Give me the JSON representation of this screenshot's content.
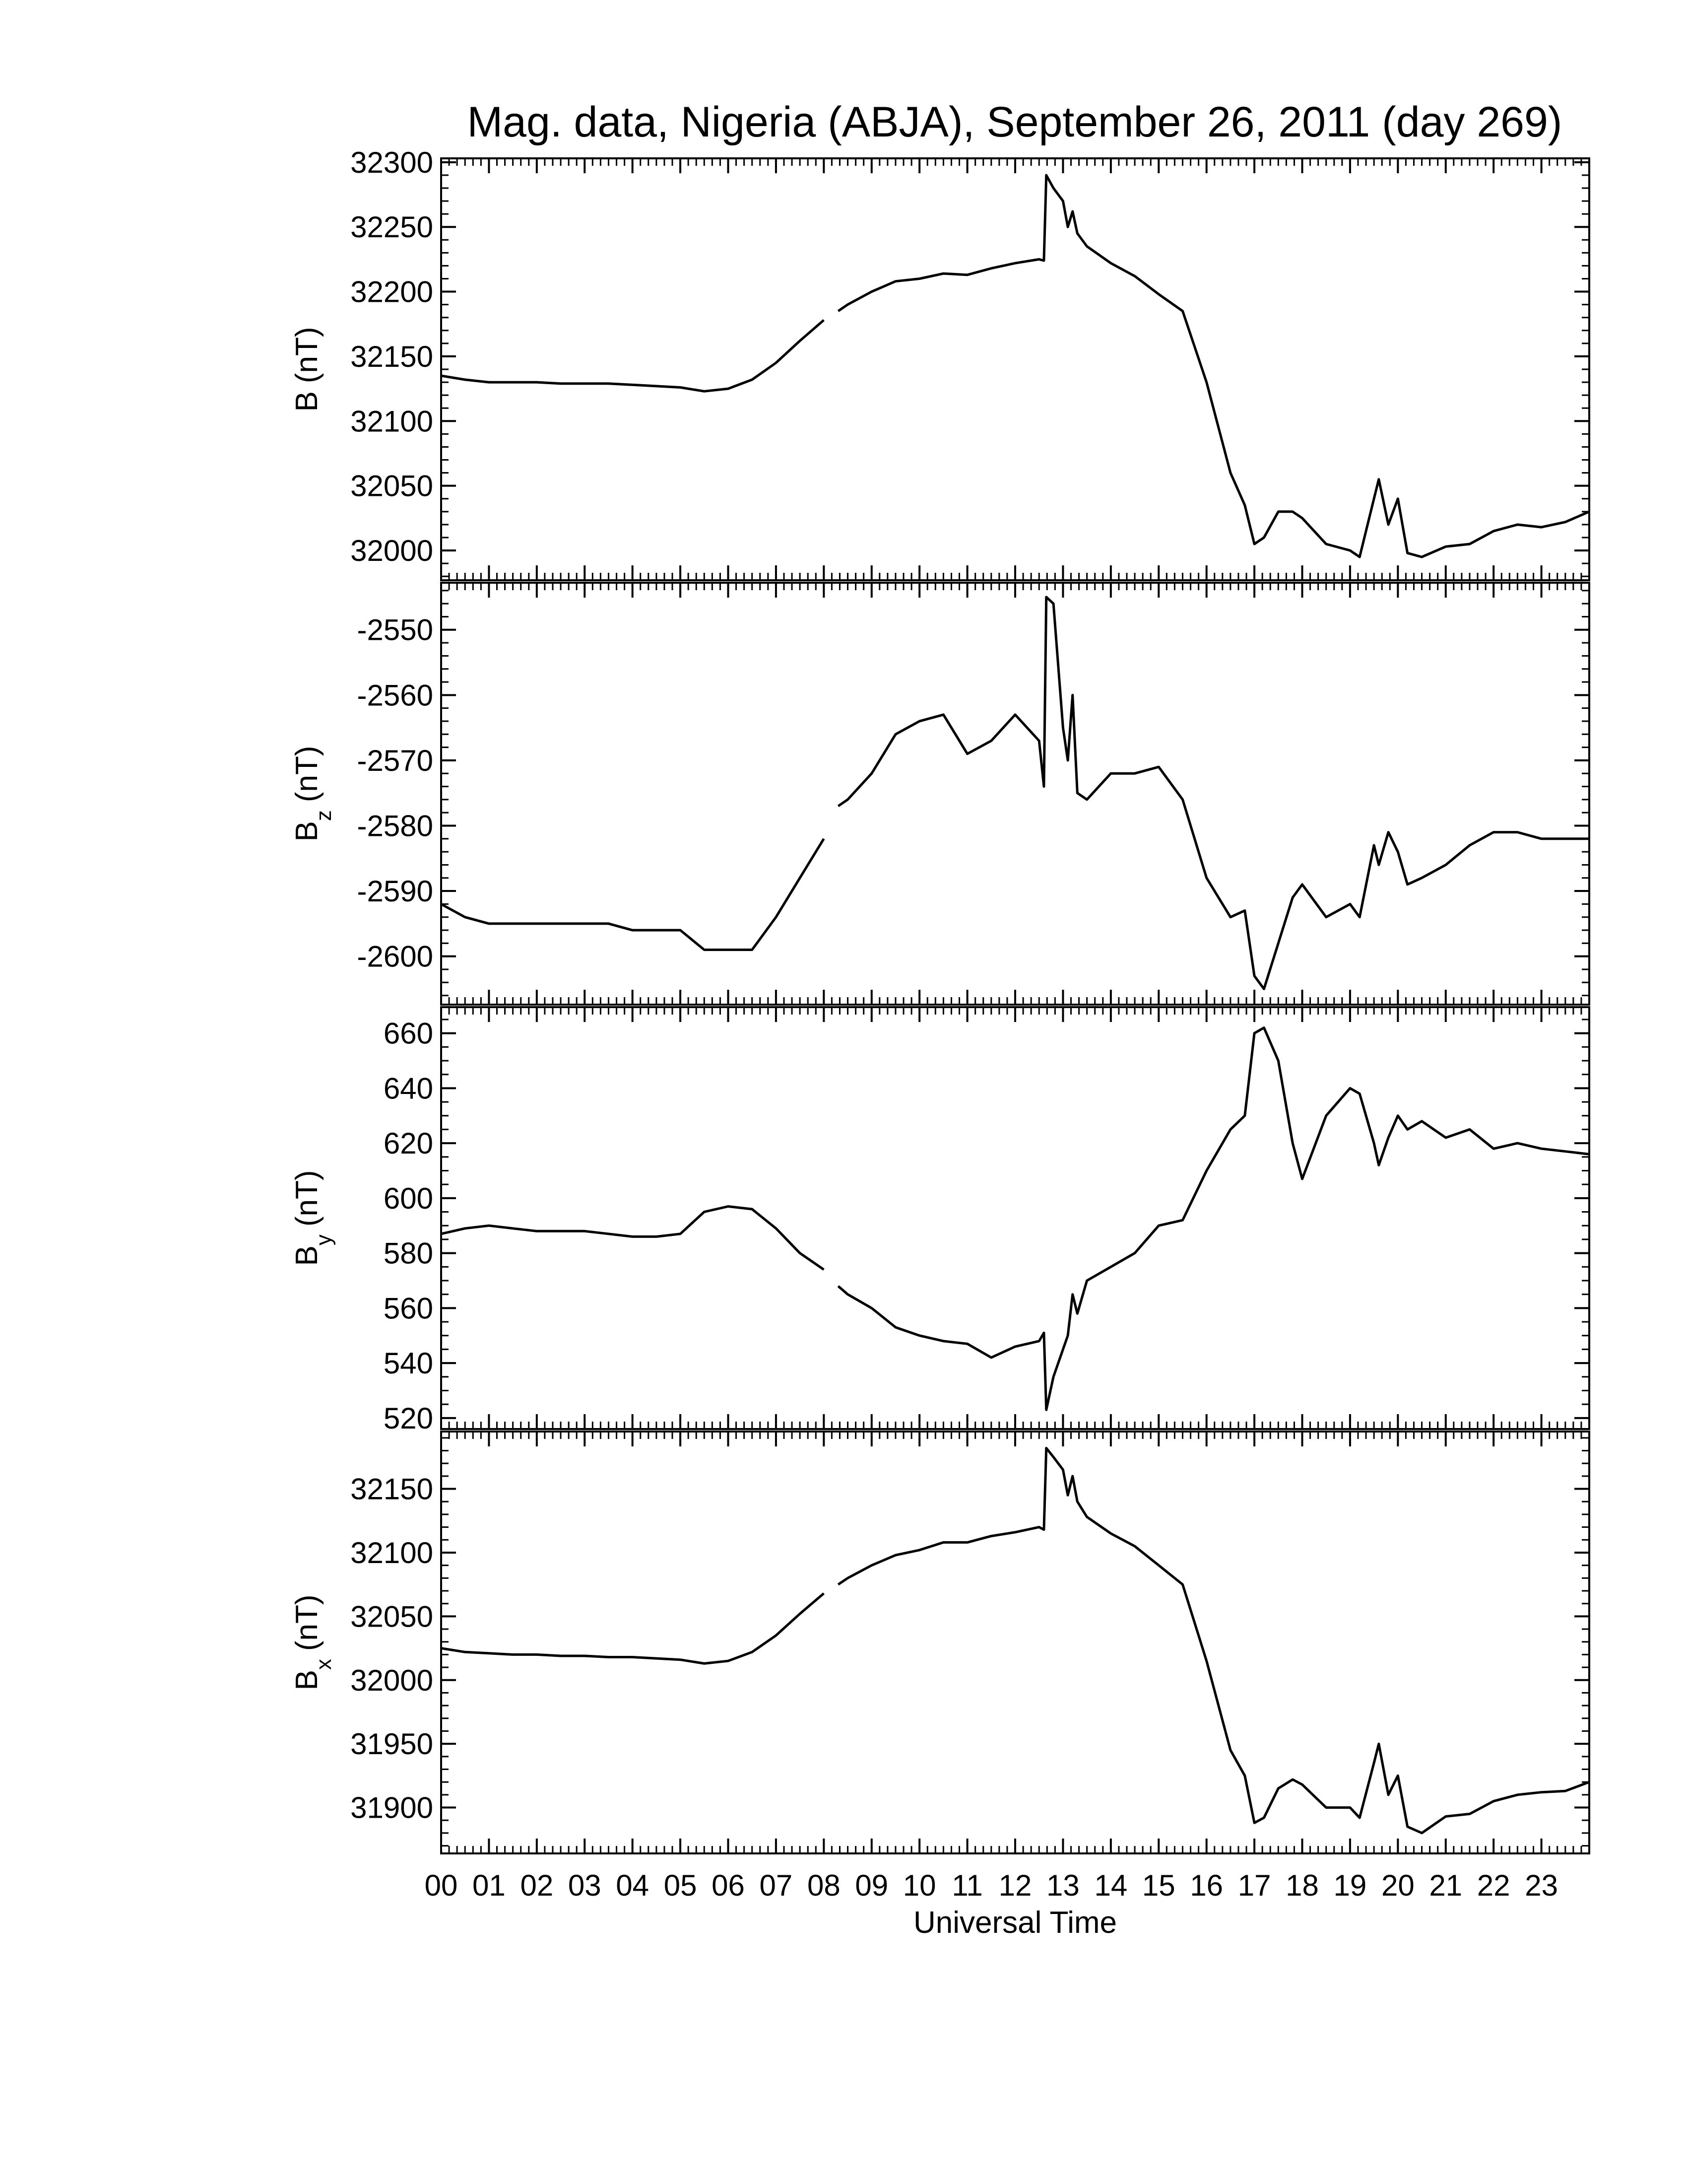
{
  "chart_data": [
    {
      "type": "line",
      "title": "Mag. data, Nigeria (ABJA), September 26, 2011 (day 269)",
      "ylabel": {
        "text": "B",
        "unit": "(nT)"
      },
      "x": [
        0,
        0.5,
        1,
        1.5,
        2,
        2.5,
        3,
        3.5,
        4,
        4.5,
        5,
        5.5,
        6,
        6.5,
        7,
        7.5,
        8,
        8.15,
        8.3,
        8.5,
        9,
        9.5,
        10,
        10.5,
        11,
        11.5,
        12,
        12.5,
        12.6,
        12.65,
        12.8,
        13,
        13.1,
        13.2,
        13.3,
        13.5,
        14,
        14.5,
        15,
        15.5,
        16,
        16.5,
        16.8,
        17,
        17.2,
        17.5,
        17.8,
        18,
        18.5,
        19,
        19.2,
        19.5,
        19.6,
        19.8,
        20,
        20.2,
        20.5,
        21,
        21.5,
        22,
        22.5,
        23,
        23.5,
        24
      ],
      "series": [
        {
          "color": "#000000",
          "values": [
            32135,
            32132,
            32130,
            32130,
            32130,
            32129,
            32129,
            32129,
            32128,
            32127,
            32126,
            32123,
            32125,
            32132,
            32145,
            32162,
            32178,
            null,
            32185,
            32190,
            32200,
            32208,
            32210,
            32214,
            32213,
            32218,
            32222,
            32225,
            32224,
            32290,
            32280,
            32270,
            32250,
            32262,
            32245,
            32235,
            32222,
            32212,
            32198,
            32185,
            32130,
            32060,
            32035,
            32005,
            32010,
            32030,
            32030,
            32025,
            32005,
            32000,
            31995,
            32040,
            32055,
            32020,
            32040,
            31998,
            31995,
            32003,
            32005,
            32015,
            32020,
            32018,
            32022,
            32030
          ]
        }
      ],
      "xlim": [
        0,
        24
      ],
      "xticks": [
        0,
        1,
        2,
        3,
        4,
        5,
        6,
        7,
        8,
        9,
        10,
        11,
        12,
        13,
        14,
        15,
        16,
        17,
        18,
        19,
        20,
        21,
        22,
        23
      ],
      "ylim": [
        31977,
        32303
      ],
      "yticks": [
        32000,
        32050,
        32100,
        32150,
        32200,
        32250,
        32300
      ],
      "x_minor_per_major": 6,
      "y_minor_per_major": 5
    },
    {
      "type": "line",
      "ylabel": {
        "text": "B",
        "subscript": "z",
        "unit": "(nT)"
      },
      "x": [
        0,
        0.5,
        1,
        1.5,
        2,
        2.5,
        3,
        3.5,
        4,
        4.5,
        5,
        5.5,
        6,
        6.5,
        7,
        7.5,
        8,
        8.15,
        8.3,
        8.5,
        9,
        9.5,
        10,
        10.5,
        11,
        11.5,
        12,
        12.5,
        12.6,
        12.65,
        12.8,
        13,
        13.1,
        13.2,
        13.3,
        13.5,
        14,
        14.5,
        15,
        15.5,
        16,
        16.5,
        16.8,
        17,
        17.2,
        17.5,
        17.8,
        18,
        18.5,
        19,
        19.2,
        19.5,
        19.6,
        19.8,
        20,
        20.2,
        20.5,
        21,
        21.5,
        22,
        22.5,
        23,
        23.5,
        24
      ],
      "series": [
        {
          "color": "#000000",
          "values": [
            -2592,
            -2594,
            -2595,
            -2595,
            -2595,
            -2595,
            -2595,
            -2595,
            -2596,
            -2596,
            -2596,
            -2599,
            -2599,
            -2599,
            -2594,
            -2588,
            -2582,
            null,
            -2577,
            -2576,
            -2572,
            -2566,
            -2564,
            -2563,
            -2569,
            -2567,
            -2563,
            -2567,
            -2574,
            -2545,
            -2546,
            -2565,
            -2570,
            -2560,
            -2575,
            -2576,
            -2572,
            -2572,
            -2571,
            -2576,
            -2588,
            -2594,
            -2593,
            -2603,
            -2605,
            -2598,
            -2591,
            -2589,
            -2594,
            -2592,
            -2594,
            -2583,
            -2586,
            -2581,
            -2584,
            -2589,
            -2588,
            -2586,
            -2583,
            -2581,
            -2581,
            -2582,
            -2582,
            -2582
          ]
        }
      ],
      "xlim": [
        0,
        24
      ],
      "xticks": [
        0,
        1,
        2,
        3,
        4,
        5,
        6,
        7,
        8,
        9,
        10,
        11,
        12,
        13,
        14,
        15,
        16,
        17,
        18,
        19,
        20,
        21,
        22,
        23
      ],
      "ylim": [
        -2607.4,
        -2542.8
      ],
      "yticks": [
        -2600,
        -2590,
        -2580,
        -2570,
        -2560,
        -2550
      ],
      "x_minor_per_major": 6,
      "y_minor_per_major": 5
    },
    {
      "type": "line",
      "ylabel": {
        "text": "B",
        "subscript": "y",
        "unit": "(nT)"
      },
      "x": [
        0,
        0.5,
        1,
        1.5,
        2,
        2.5,
        3,
        3.5,
        4,
        4.5,
        5,
        5.5,
        6,
        6.5,
        7,
        7.5,
        8,
        8.15,
        8.3,
        8.5,
        9,
        9.5,
        10,
        10.5,
        11,
        11.5,
        12,
        12.5,
        12.6,
        12.65,
        12.8,
        13,
        13.1,
        13.2,
        13.3,
        13.5,
        14,
        14.5,
        15,
        15.5,
        16,
        16.5,
        16.8,
        17,
        17.2,
        17.5,
        17.8,
        18,
        18.5,
        19,
        19.2,
        19.5,
        19.6,
        19.8,
        20,
        20.2,
        20.5,
        21,
        21.5,
        22,
        22.5,
        23,
        23.5,
        24
      ],
      "series": [
        {
          "color": "#000000",
          "values": [
            587,
            589,
            590,
            589,
            588,
            588,
            588,
            587,
            586,
            586,
            587,
            595,
            597,
            596,
            589,
            580,
            574,
            null,
            568,
            565,
            560,
            553,
            550,
            548,
            547,
            542,
            546,
            548,
            551,
            523,
            535,
            545,
            550,
            565,
            558,
            570,
            575,
            580,
            590,
            592,
            610,
            625,
            630,
            660,
            662,
            650,
            620,
            607,
            630,
            640,
            638,
            620,
            612,
            622,
            630,
            625,
            628,
            622,
            625,
            618,
            620,
            618,
            617,
            616
          ]
        }
      ],
      "xlim": [
        0,
        24
      ],
      "xticks": [
        0,
        1,
        2,
        3,
        4,
        5,
        6,
        7,
        8,
        9,
        10,
        11,
        12,
        13,
        14,
        15,
        16,
        17,
        18,
        19,
        20,
        21,
        22,
        23
      ],
      "ylim": [
        516,
        669.5
      ],
      "yticks": [
        520,
        540,
        560,
        580,
        600,
        620,
        640,
        660
      ],
      "x_minor_per_major": 6,
      "y_minor_per_major": 4
    },
    {
      "type": "line",
      "ylabel": {
        "text": "B",
        "subscript": "x",
        "unit": "(nT)"
      },
      "xlabel": "Universal Time",
      "x": [
        0,
        0.5,
        1,
        1.5,
        2,
        2.5,
        3,
        3.5,
        4,
        4.5,
        5,
        5.5,
        6,
        6.5,
        7,
        7.5,
        8,
        8.15,
        8.3,
        8.5,
        9,
        9.5,
        10,
        10.5,
        11,
        11.5,
        12,
        12.5,
        12.6,
        12.65,
        12.8,
        13,
        13.1,
        13.2,
        13.3,
        13.5,
        14,
        14.5,
        15,
        15.5,
        16,
        16.5,
        16.8,
        17,
        17.2,
        17.5,
        17.8,
        18,
        18.5,
        19,
        19.2,
        19.5,
        19.6,
        19.8,
        20,
        20.2,
        20.5,
        21,
        21.5,
        22,
        22.5,
        23,
        23.5,
        24
      ],
      "series": [
        {
          "color": "#000000",
          "values": [
            32025,
            32022,
            32021,
            32020,
            32020,
            32019,
            32019,
            32018,
            32018,
            32017,
            32016,
            32013,
            32015,
            32022,
            32035,
            32052,
            32068,
            null,
            32075,
            32080,
            32090,
            32098,
            32102,
            32108,
            32108,
            32113,
            32116,
            32120,
            32118,
            32182,
            32175,
            32165,
            32145,
            32160,
            32140,
            32128,
            32115,
            32105,
            32090,
            32075,
            32015,
            31945,
            31925,
            31888,
            31892,
            31915,
            31922,
            31918,
            31900,
            31900,
            31892,
            31935,
            31950,
            31910,
            31925,
            31885,
            31880,
            31893,
            31895,
            31905,
            31910,
            31912,
            31913,
            31920
          ]
        }
      ],
      "xlim": [
        0,
        24
      ],
      "xticks": [
        {
          "value": 0,
          "label": "00"
        },
        {
          "value": 1,
          "label": "01"
        },
        {
          "value": 2,
          "label": "02"
        },
        {
          "value": 3,
          "label": "03"
        },
        {
          "value": 4,
          "label": "04"
        },
        {
          "value": 5,
          "label": "05"
        },
        {
          "value": 6,
          "label": "06"
        },
        {
          "value": 7,
          "label": "07"
        },
        {
          "value": 8,
          "label": "08"
        },
        {
          "value": 9,
          "label": "09"
        },
        {
          "value": 10,
          "label": "10"
        },
        {
          "value": 11,
          "label": "11"
        },
        {
          "value": 12,
          "label": "12"
        },
        {
          "value": 13,
          "label": "13"
        },
        {
          "value": 14,
          "label": "14"
        },
        {
          "value": 15,
          "label": "15"
        },
        {
          "value": 16,
          "label": "16"
        },
        {
          "value": 17,
          "label": "17"
        },
        {
          "value": 18,
          "label": "18"
        },
        {
          "value": 19,
          "label": "19"
        },
        {
          "value": 20,
          "label": "20"
        },
        {
          "value": 21,
          "label": "21"
        },
        {
          "value": 22,
          "label": "22"
        },
        {
          "value": 23,
          "label": "23"
        }
      ],
      "ylim": [
        31864,
        32195
      ],
      "yticks": [
        31900,
        31950,
        32000,
        32050,
        32100,
        32150
      ],
      "x_minor_per_major": 6,
      "y_minor_per_major": 5
    }
  ]
}
